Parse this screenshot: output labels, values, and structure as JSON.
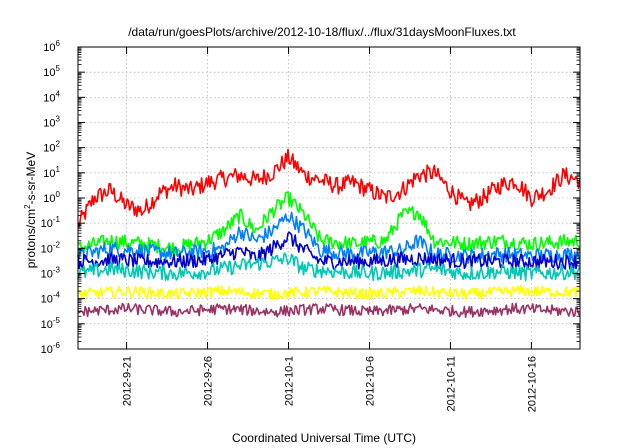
{
  "chart_data": {
    "type": "line",
    "title": "/data/run/goesPlots/archive/2012-10-18/flux/../flux/31daysMoonFluxes.txt",
    "xlabel": "Coordinated Universal Time (UTC)",
    "ylabel_parts": {
      "base": "protons/cm",
      "sup": "2",
      "rest": "-s-sr-MeV"
    },
    "x_range": [
      "2012-09-18",
      "2012-10-19"
    ],
    "x_ticks": [
      "2012-9-21",
      "2012-9-26",
      "2012-10-1",
      "2012-10-6",
      "2012-10-11",
      "2012-10-16"
    ],
    "y_scale": "log",
    "ylim": [
      1e-06,
      1000000.0
    ],
    "y_ticks": [
      {
        "base": "10",
        "exp": "-6"
      },
      {
        "base": "10",
        "exp": "-5"
      },
      {
        "base": "10",
        "exp": "-4"
      },
      {
        "base": "10",
        "exp": "-3"
      },
      {
        "base": "10",
        "exp": "-2"
      },
      {
        "base": "10",
        "exp": "-1"
      },
      {
        "base": "10",
        "exp": "0"
      },
      {
        "base": "10",
        "exp": "1"
      },
      {
        "base": "10",
        "exp": "2"
      },
      {
        "base": "10",
        "exp": "3"
      },
      {
        "base": "10",
        "exp": "4"
      },
      {
        "base": "10",
        "exp": "5"
      },
      {
        "base": "10",
        "exp": "6"
      }
    ],
    "grid": true,
    "legend": "none",
    "series": [
      {
        "color": "#ff0000",
        "x": [
          "2012-09-18",
          "2012-09-19",
          "2012-09-20",
          "2012-09-21",
          "2012-09-22",
          "2012-09-23",
          "2012-09-24",
          "2012-09-25",
          "2012-09-26",
          "2012-09-27",
          "2012-09-28",
          "2012-09-29",
          "2012-09-30",
          "2012-10-01",
          "2012-10-02",
          "2012-10-03",
          "2012-10-04",
          "2012-10-05",
          "2012-10-06",
          "2012-10-07",
          "2012-10-08",
          "2012-10-09",
          "2012-10-10",
          "2012-10-11",
          "2012-10-12",
          "2012-10-13",
          "2012-10-14",
          "2012-10-15",
          "2012-10-16",
          "2012-10-17",
          "2012-10-18",
          "2012-10-19"
        ],
        "values": [
          0.08,
          1.0,
          2.0,
          0.5,
          0.3,
          1.5,
          3.0,
          2.0,
          4.0,
          6.0,
          8.0,
          5.0,
          10.0,
          40.0,
          8.0,
          5.0,
          3.0,
          4.0,
          2.0,
          1.0,
          2.0,
          8.0,
          10.0,
          2.0,
          0.5,
          1.0,
          3.0,
          5.0,
          1.0,
          2.0,
          8.0,
          5.0
        ]
      },
      {
        "color": "#00ff00",
        "x": [
          "2012-09-18",
          "2012-09-20",
          "2012-09-22",
          "2012-09-24",
          "2012-09-26",
          "2012-09-27",
          "2012-09-28",
          "2012-09-29",
          "2012-09-30",
          "2012-10-01",
          "2012-10-02",
          "2012-10-03",
          "2012-10-05",
          "2012-10-07",
          "2012-10-08",
          "2012-10-09",
          "2012-10-10",
          "2012-10-12",
          "2012-10-14",
          "2012-10-16",
          "2012-10-19"
        ],
        "values": [
          0.01,
          0.02,
          0.015,
          0.01,
          0.02,
          0.05,
          0.2,
          0.05,
          0.3,
          1.0,
          0.2,
          0.02,
          0.015,
          0.02,
          0.2,
          0.3,
          0.02,
          0.015,
          0.02,
          0.015,
          0.02
        ]
      },
      {
        "color": "#0080ff",
        "x": [
          "2012-09-18",
          "2012-09-20",
          "2012-09-22",
          "2012-09-24",
          "2012-09-26",
          "2012-09-27",
          "2012-09-28",
          "2012-09-29",
          "2012-09-30",
          "2012-10-01",
          "2012-10-02",
          "2012-10-03",
          "2012-10-05",
          "2012-10-08",
          "2012-10-09",
          "2012-10-10",
          "2012-10-12",
          "2012-10-14",
          "2012-10-16",
          "2012-10-19"
        ],
        "values": [
          0.005,
          0.01,
          0.008,
          0.006,
          0.008,
          0.01,
          0.05,
          0.02,
          0.05,
          0.2,
          0.05,
          0.008,
          0.006,
          0.008,
          0.02,
          0.006,
          0.005,
          0.006,
          0.005,
          0.006
        ]
      },
      {
        "color": "#0000cc",
        "x": [
          "2012-09-18",
          "2012-09-20",
          "2012-09-22",
          "2012-09-24",
          "2012-09-26",
          "2012-09-28",
          "2012-09-29",
          "2012-09-30",
          "2012-10-01",
          "2012-10-02",
          "2012-10-03",
          "2012-10-06",
          "2012-10-09",
          "2012-10-12",
          "2012-10-15",
          "2012-10-19"
        ],
        "values": [
          0.003,
          0.0035,
          0.003,
          0.003,
          0.0035,
          0.008,
          0.004,
          0.01,
          0.03,
          0.008,
          0.003,
          0.003,
          0.004,
          0.003,
          0.003,
          0.003
        ]
      },
      {
        "color": "#00c8b4",
        "x": [
          "2012-09-18",
          "2012-09-20",
          "2012-09-22",
          "2012-09-24",
          "2012-09-26",
          "2012-09-28",
          "2012-09-30",
          "2012-10-01",
          "2012-10-02",
          "2012-10-04",
          "2012-10-06",
          "2012-10-08",
          "2012-10-10",
          "2012-10-12",
          "2012-10-14",
          "2012-10-16",
          "2012-10-19"
        ],
        "values": [
          0.001,
          0.0015,
          0.0012,
          0.001,
          0.0012,
          0.002,
          0.003,
          0.004,
          0.0015,
          0.0012,
          0.001,
          0.0012,
          0.0015,
          0.001,
          0.0012,
          0.001,
          0.0012
        ]
      },
      {
        "color": "#ffff00",
        "x": [
          "2012-09-18",
          "2012-09-21",
          "2012-09-24",
          "2012-09-27",
          "2012-09-30",
          "2012-10-03",
          "2012-10-06",
          "2012-10-09",
          "2012-10-12",
          "2012-10-15",
          "2012-10-19"
        ],
        "values": [
          0.00015,
          0.0002,
          0.00015,
          0.0002,
          0.00015,
          0.0002,
          0.00015,
          0.0002,
          0.00015,
          0.0002,
          0.00018
        ]
      },
      {
        "color": "#993366",
        "x": [
          "2012-09-18",
          "2012-09-21",
          "2012-09-24",
          "2012-09-27",
          "2012-09-30",
          "2012-10-03",
          "2012-10-06",
          "2012-10-09",
          "2012-10-12",
          "2012-10-15",
          "2012-10-19"
        ],
        "values": [
          3e-05,
          4e-05,
          3e-05,
          4e-05,
          3e-05,
          4e-05,
          3e-05,
          4e-05,
          3e-05,
          4e-05,
          3e-05
        ]
      }
    ]
  }
}
